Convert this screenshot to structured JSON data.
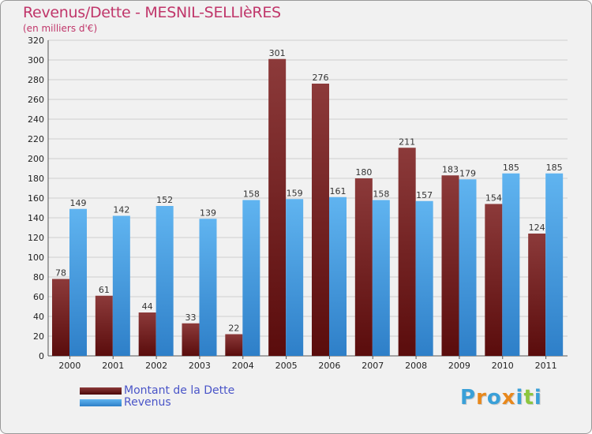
{
  "title": "Revenus/Dette - MESNIL-SELLIèRES",
  "subtitle": "(en milliers d'€)",
  "colors": {
    "title": "#c0366a",
    "debt_top": "#8c3a3a",
    "debt_bottom": "#5a0c0c",
    "revenue_top": "#60b4f0",
    "revenue_bottom": "#2e7fc8",
    "legend_text": "#4a55c8"
  },
  "legend": [
    {
      "label": "Montant de la Dette",
      "series": "debt"
    },
    {
      "label": "Revenus",
      "series": "revenue"
    }
  ],
  "logo": {
    "text": "Proxiti",
    "letter_colors": [
      "#3aa0d8",
      "#e8881c",
      "#3aa0d8",
      "#e8881c",
      "#3aa0d8",
      "#8cc63e",
      "#3aa0d8"
    ]
  },
  "chart_data": {
    "type": "bar",
    "title": "Revenus/Dette - MESNIL-SELLIèRES",
    "ylabel": "(en milliers d'€)",
    "categories": [
      "2000",
      "2001",
      "2002",
      "2003",
      "2004",
      "2005",
      "2006",
      "2007",
      "2008",
      "2009",
      "2010",
      "2011"
    ],
    "series": [
      {
        "name": "Montant de la Dette",
        "key": "debt",
        "values": [
          78,
          61,
          44,
          33,
          22,
          301,
          276,
          180,
          211,
          183,
          154,
          124
        ]
      },
      {
        "name": "Revenus",
        "key": "revenue",
        "values": [
          149,
          142,
          152,
          139,
          158,
          159,
          161,
          158,
          157,
          179,
          185,
          185
        ]
      }
    ],
    "ylim": [
      0,
      320
    ],
    "yticks": [
      0,
      20,
      40,
      60,
      80,
      100,
      120,
      140,
      160,
      180,
      200,
      220,
      240,
      260,
      280,
      300,
      320
    ],
    "grid": true,
    "legend_position": "bottom-left"
  }
}
